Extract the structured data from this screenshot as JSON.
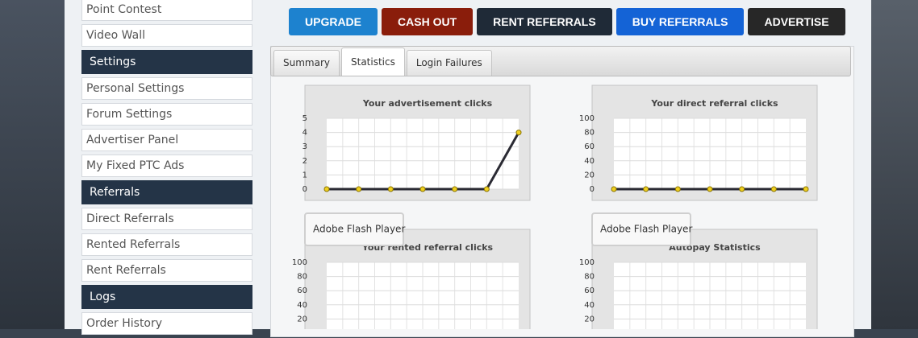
{
  "sidebar": [
    {
      "title": null,
      "items": [
        "Point Contest",
        "Video Wall"
      ]
    },
    {
      "title": "Settings",
      "items": [
        "Personal Settings",
        "Forum Settings",
        "Advertiser Panel",
        "My Fixed PTC Ads"
      ]
    },
    {
      "title": "Referrals",
      "items": [
        "Direct Referrals",
        "Rented Referrals",
        "Rent Referrals"
      ]
    },
    {
      "title": "Logs",
      "items": [
        "Order History"
      ]
    }
  ],
  "buttons": [
    {
      "label": "UPGRADE",
      "color": "#1d82cf"
    },
    {
      "label": "CASH OUT",
      "color": "#8a1d0b"
    },
    {
      "label": "RENT REFERRALS",
      "color": "#1f2a37"
    },
    {
      "label": "BUY REFERRALS",
      "color": "#1463d6"
    },
    {
      "label": "ADVERTISE",
      "color": "#272727"
    }
  ],
  "tabs": {
    "items": [
      "Summary",
      "Statistics",
      "Login Failures"
    ],
    "active": 1
  },
  "charts": [
    {
      "type": "line",
      "title": "Your advertisement clicks",
      "values": [
        0,
        0,
        0,
        0,
        0,
        0,
        4
      ],
      "ylim": [
        0,
        5
      ],
      "yticks": [
        0,
        1,
        2,
        3,
        4,
        5
      ]
    },
    {
      "type": "line",
      "title": "Your direct referral clicks",
      "values": [
        0,
        0,
        0,
        0,
        0,
        0,
        0
      ],
      "ylim": [
        0,
        100
      ],
      "yticks": [
        0,
        20,
        40,
        60,
        80,
        100
      ]
    },
    {
      "type": "line",
      "title": "Your rented referral clicks",
      "overlay": "Adobe Flash Player",
      "ylim": [
        0,
        100
      ],
      "yticks": [
        20,
        40,
        60,
        80,
        100
      ]
    },
    {
      "type": "line",
      "title": "Autopay Statistics",
      "overlay": "Adobe Flash Player",
      "ylim": [
        0,
        100
      ],
      "yticks": [
        20,
        40,
        60,
        80,
        100
      ]
    }
  ]
}
